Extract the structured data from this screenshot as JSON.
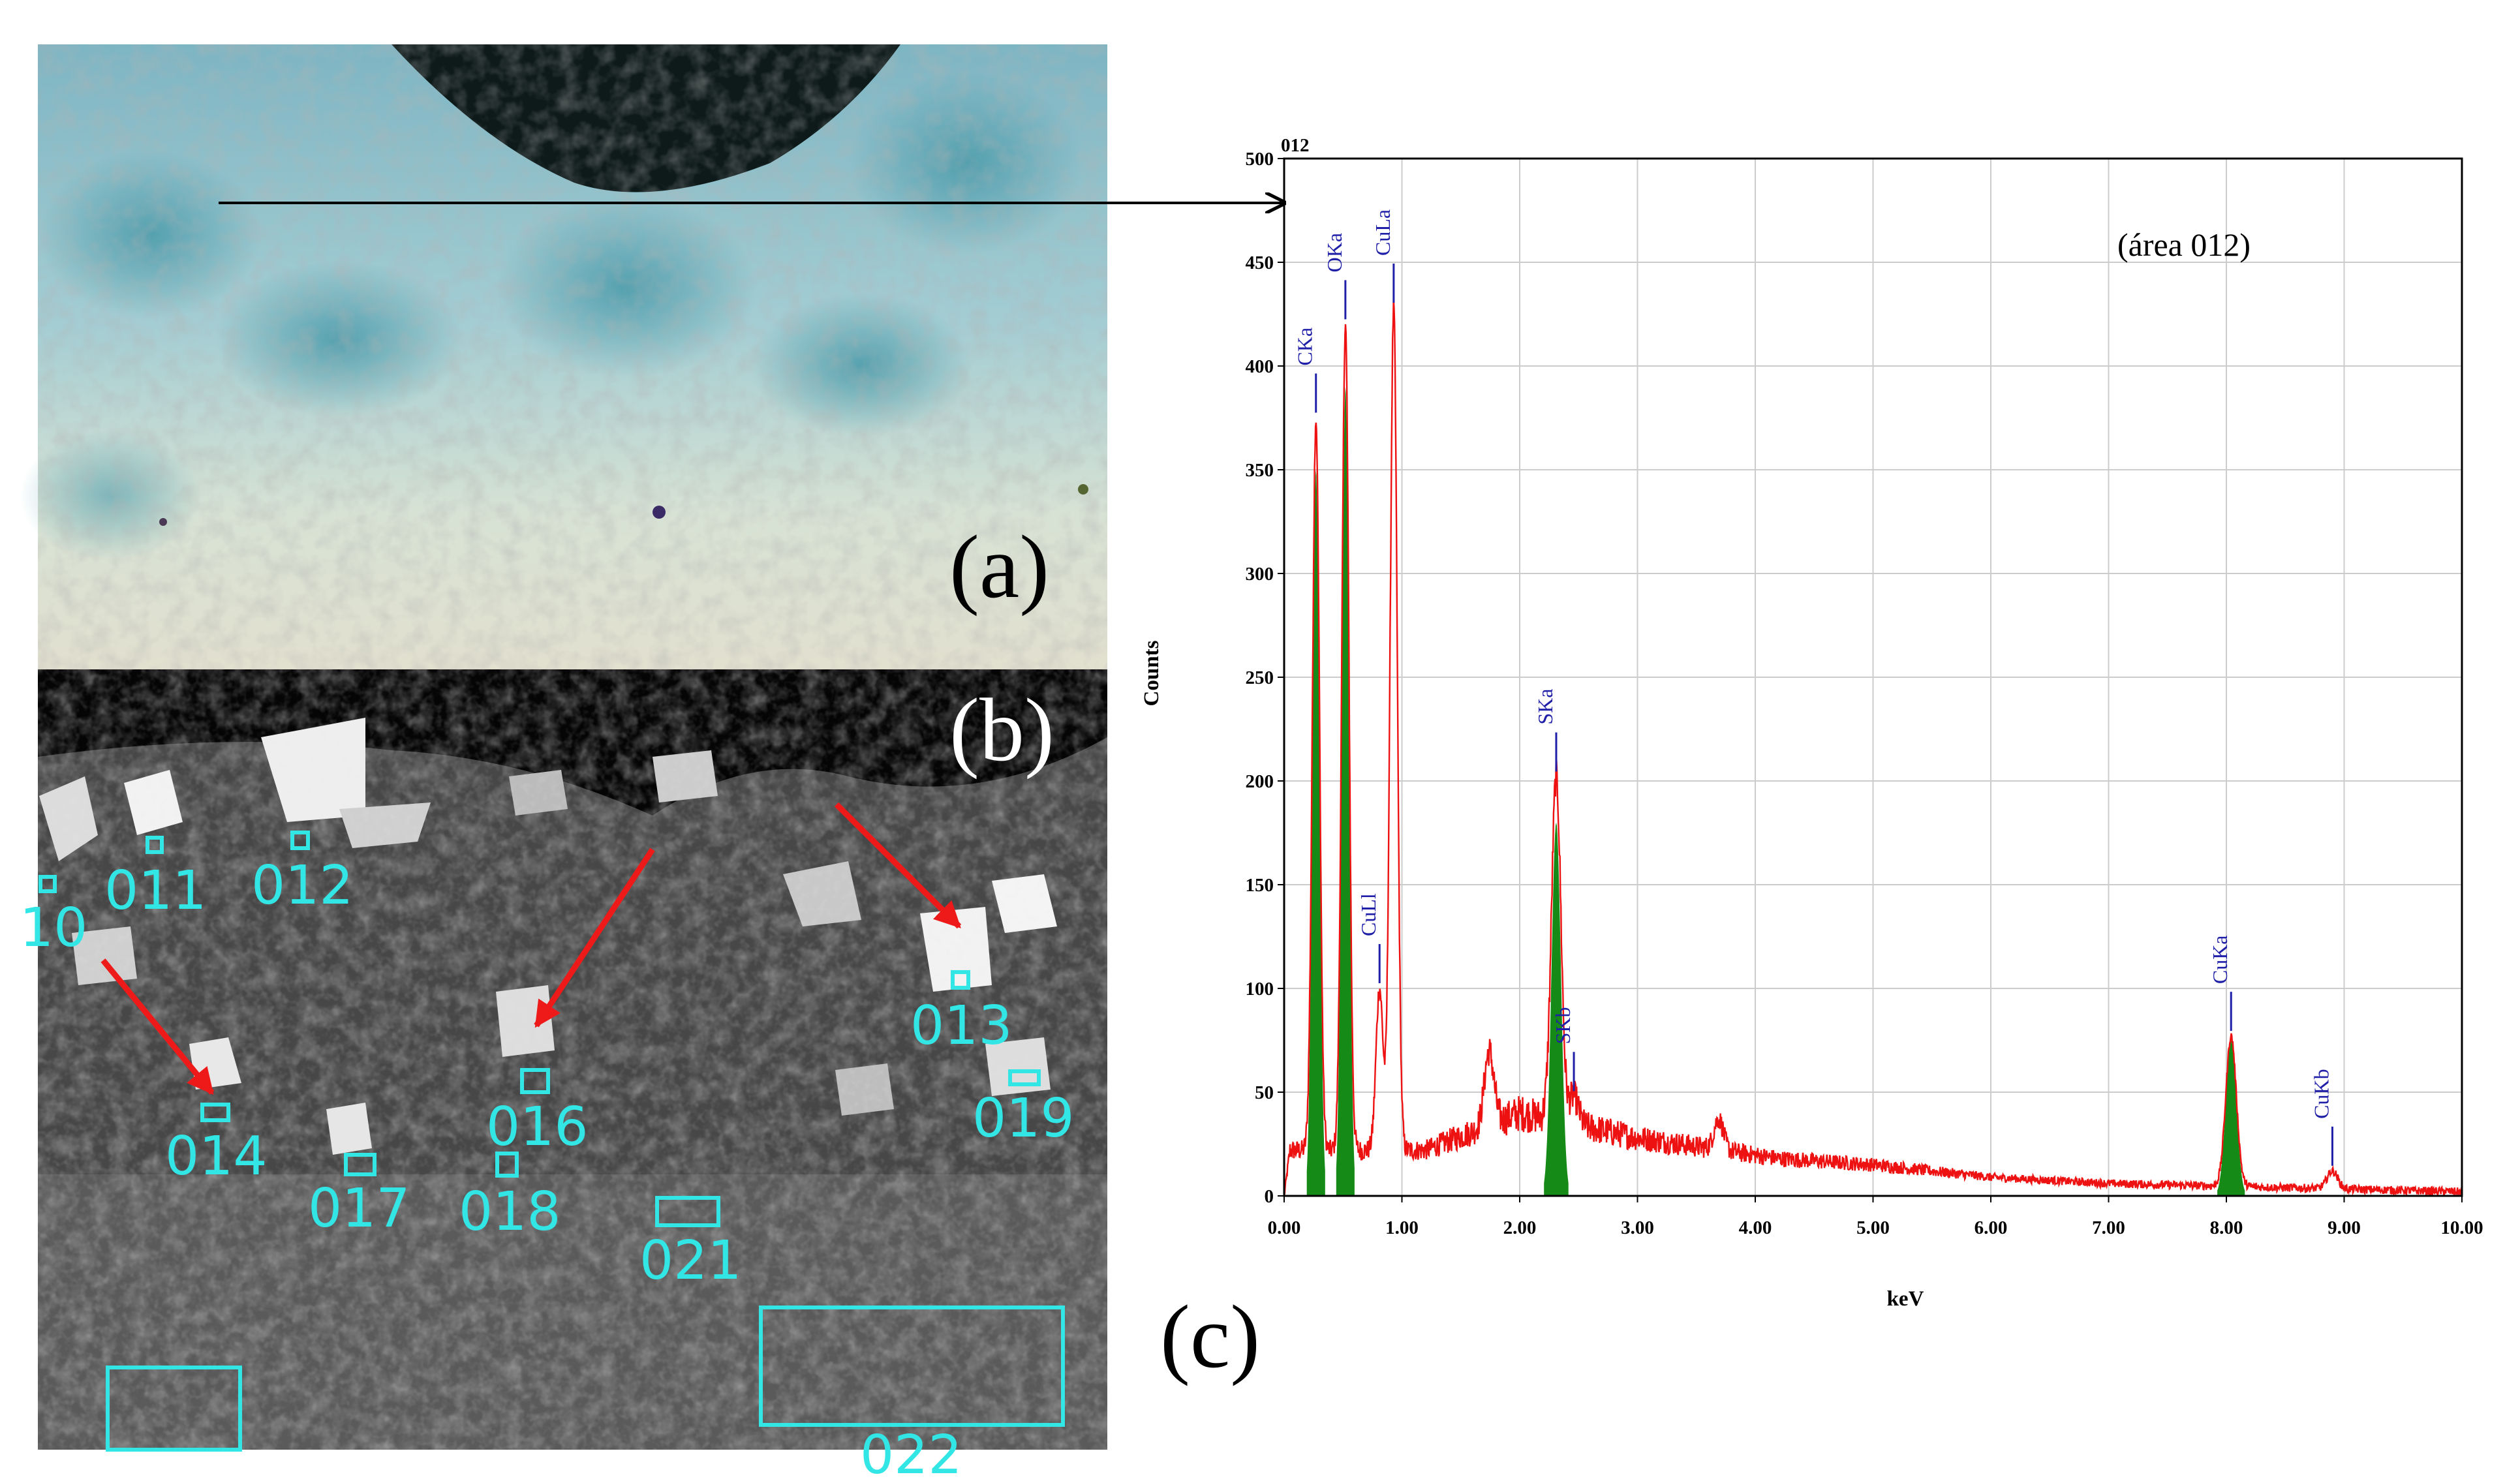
{
  "panels": {
    "a_label": "(a)",
    "b_label": "(b)",
    "c_label": "(c)"
  },
  "sem_labels": [
    "10",
    "011",
    "012",
    "013",
    "014",
    "016",
    "017",
    "018",
    "019",
    "021",
    "022"
  ],
  "colors": {
    "spectrum": "#ee1111",
    "peak_fill": "#168a16",
    "peak_marker": "#1f1fa8",
    "grid": "#cccccc",
    "sem_marker": "#33e6e6",
    "arrow": "#ee1a1a"
  },
  "chart_data": {
    "type": "area",
    "corner_label": "012",
    "annotation": "(área 012)",
    "xlabel": "keV",
    "ylabel": "Counts",
    "xlim": [
      0,
      10
    ],
    "ylim": [
      0,
      500
    ],
    "x_ticks": [
      "0.00",
      "1.00",
      "2.00",
      "3.00",
      "4.00",
      "5.00",
      "6.00",
      "7.00",
      "8.00",
      "9.00",
      "10.00"
    ],
    "y_ticks": [
      "0",
      "50",
      "100",
      "150",
      "200",
      "250",
      "300",
      "350",
      "400",
      "450",
      "500"
    ],
    "grid": true,
    "series": [
      {
        "peaks": [
          {
            "name": "CKa",
            "x": 0.27,
            "y": 375,
            "fill_top": 350
          },
          {
            "name": "OKa",
            "x": 0.52,
            "y": 420,
            "fill_top": 390
          },
          {
            "name": "CuLl",
            "x": 0.81,
            "y": 100
          },
          {
            "name": "CuLa",
            "x": 0.93,
            "y": 428
          },
          {
            "name": "SKa",
            "x": 2.31,
            "y": 202,
            "fill_top": 180
          },
          {
            "name": "SKb",
            "x": 2.46,
            "y": 48
          },
          {
            "name": "CuKa",
            "x": 8.04,
            "y": 77,
            "fill_top": 75
          },
          {
            "name": "CuKb",
            "x": 8.9,
            "y": 12
          }
        ],
        "minor_peaks": [
          {
            "x": 1.74,
            "y": 70
          },
          {
            "x": 3.69,
            "y": 37
          }
        ],
        "background": [
          {
            "x": 0.05,
            "y": 22
          },
          {
            "x": 1.2,
            "y": 22
          },
          {
            "x": 2.0,
            "y": 40
          },
          {
            "x": 3.0,
            "y": 28
          },
          {
            "x": 4.2,
            "y": 18
          },
          {
            "x": 5.0,
            "y": 15
          },
          {
            "x": 6.0,
            "y": 9
          },
          {
            "x": 7.0,
            "y": 6
          },
          {
            "x": 8.5,
            "y": 4
          },
          {
            "x": 10.0,
            "y": 2
          }
        ]
      }
    ]
  }
}
